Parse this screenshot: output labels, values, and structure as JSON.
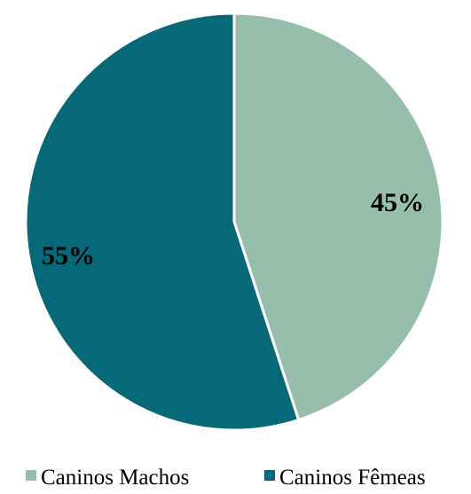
{
  "chart_data": {
    "type": "pie",
    "categories": [
      "Caninos Machos",
      "Caninos Fêmeas"
    ],
    "values": [
      45,
      55
    ],
    "value_labels": [
      "45%",
      "55%"
    ],
    "colors": [
      "#97bead",
      "#076878"
    ],
    "start_angle_deg": 0,
    "direction": "clockwise",
    "legend_position": "bottom",
    "title": ""
  }
}
